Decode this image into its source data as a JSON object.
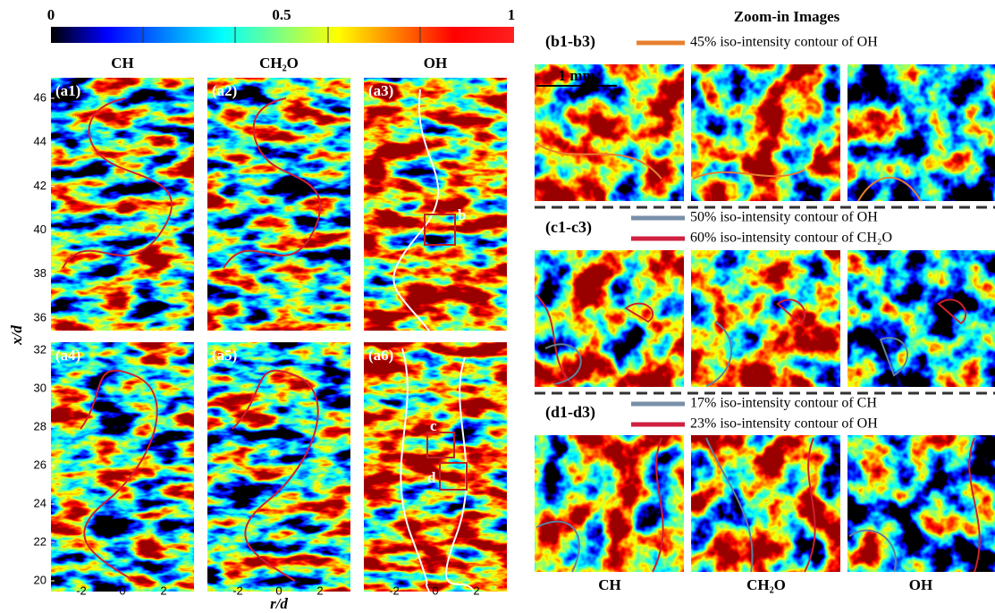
{
  "colorbar": {
    "labels": [
      "0",
      "0.5",
      "1"
    ]
  },
  "columns": [
    "CH",
    "CH₂O",
    "OH"
  ],
  "panels": [
    "(a1)",
    "(a2)",
    "(a3)",
    "(a4)",
    "(a5)",
    "(a6)"
  ],
  "boxes": [
    "b",
    "c",
    "d"
  ],
  "y_axis": {
    "label": "x/d",
    "ticks_top": [
      "36",
      "38",
      "40",
      "42",
      "44",
      "46"
    ],
    "ticks_bottom": [
      "20",
      "22",
      "24",
      "26",
      "28",
      "30",
      "32"
    ]
  },
  "x_axis": {
    "label": "r/d",
    "ticks": [
      "-2",
      "0",
      "2"
    ]
  },
  "zoom": {
    "title": "Zoom-in Images",
    "scale": "1 mm",
    "rows": [
      {
        "label": "(b1-b3)",
        "legend": [
          "45% iso-intensity contour of OH"
        ]
      },
      {
        "label": "(c1-c3)",
        "legend": [
          "50% iso-intensity contour of OH",
          "60% iso-intensity contour of CH₂O"
        ]
      },
      {
        "label": "(d1-d3)",
        "legend": [
          "17% iso-intensity contour of CH",
          "23% iso-intensity contour of OH"
        ]
      }
    ],
    "columns": [
      "CH",
      "CH₂O",
      "OH"
    ]
  }
}
